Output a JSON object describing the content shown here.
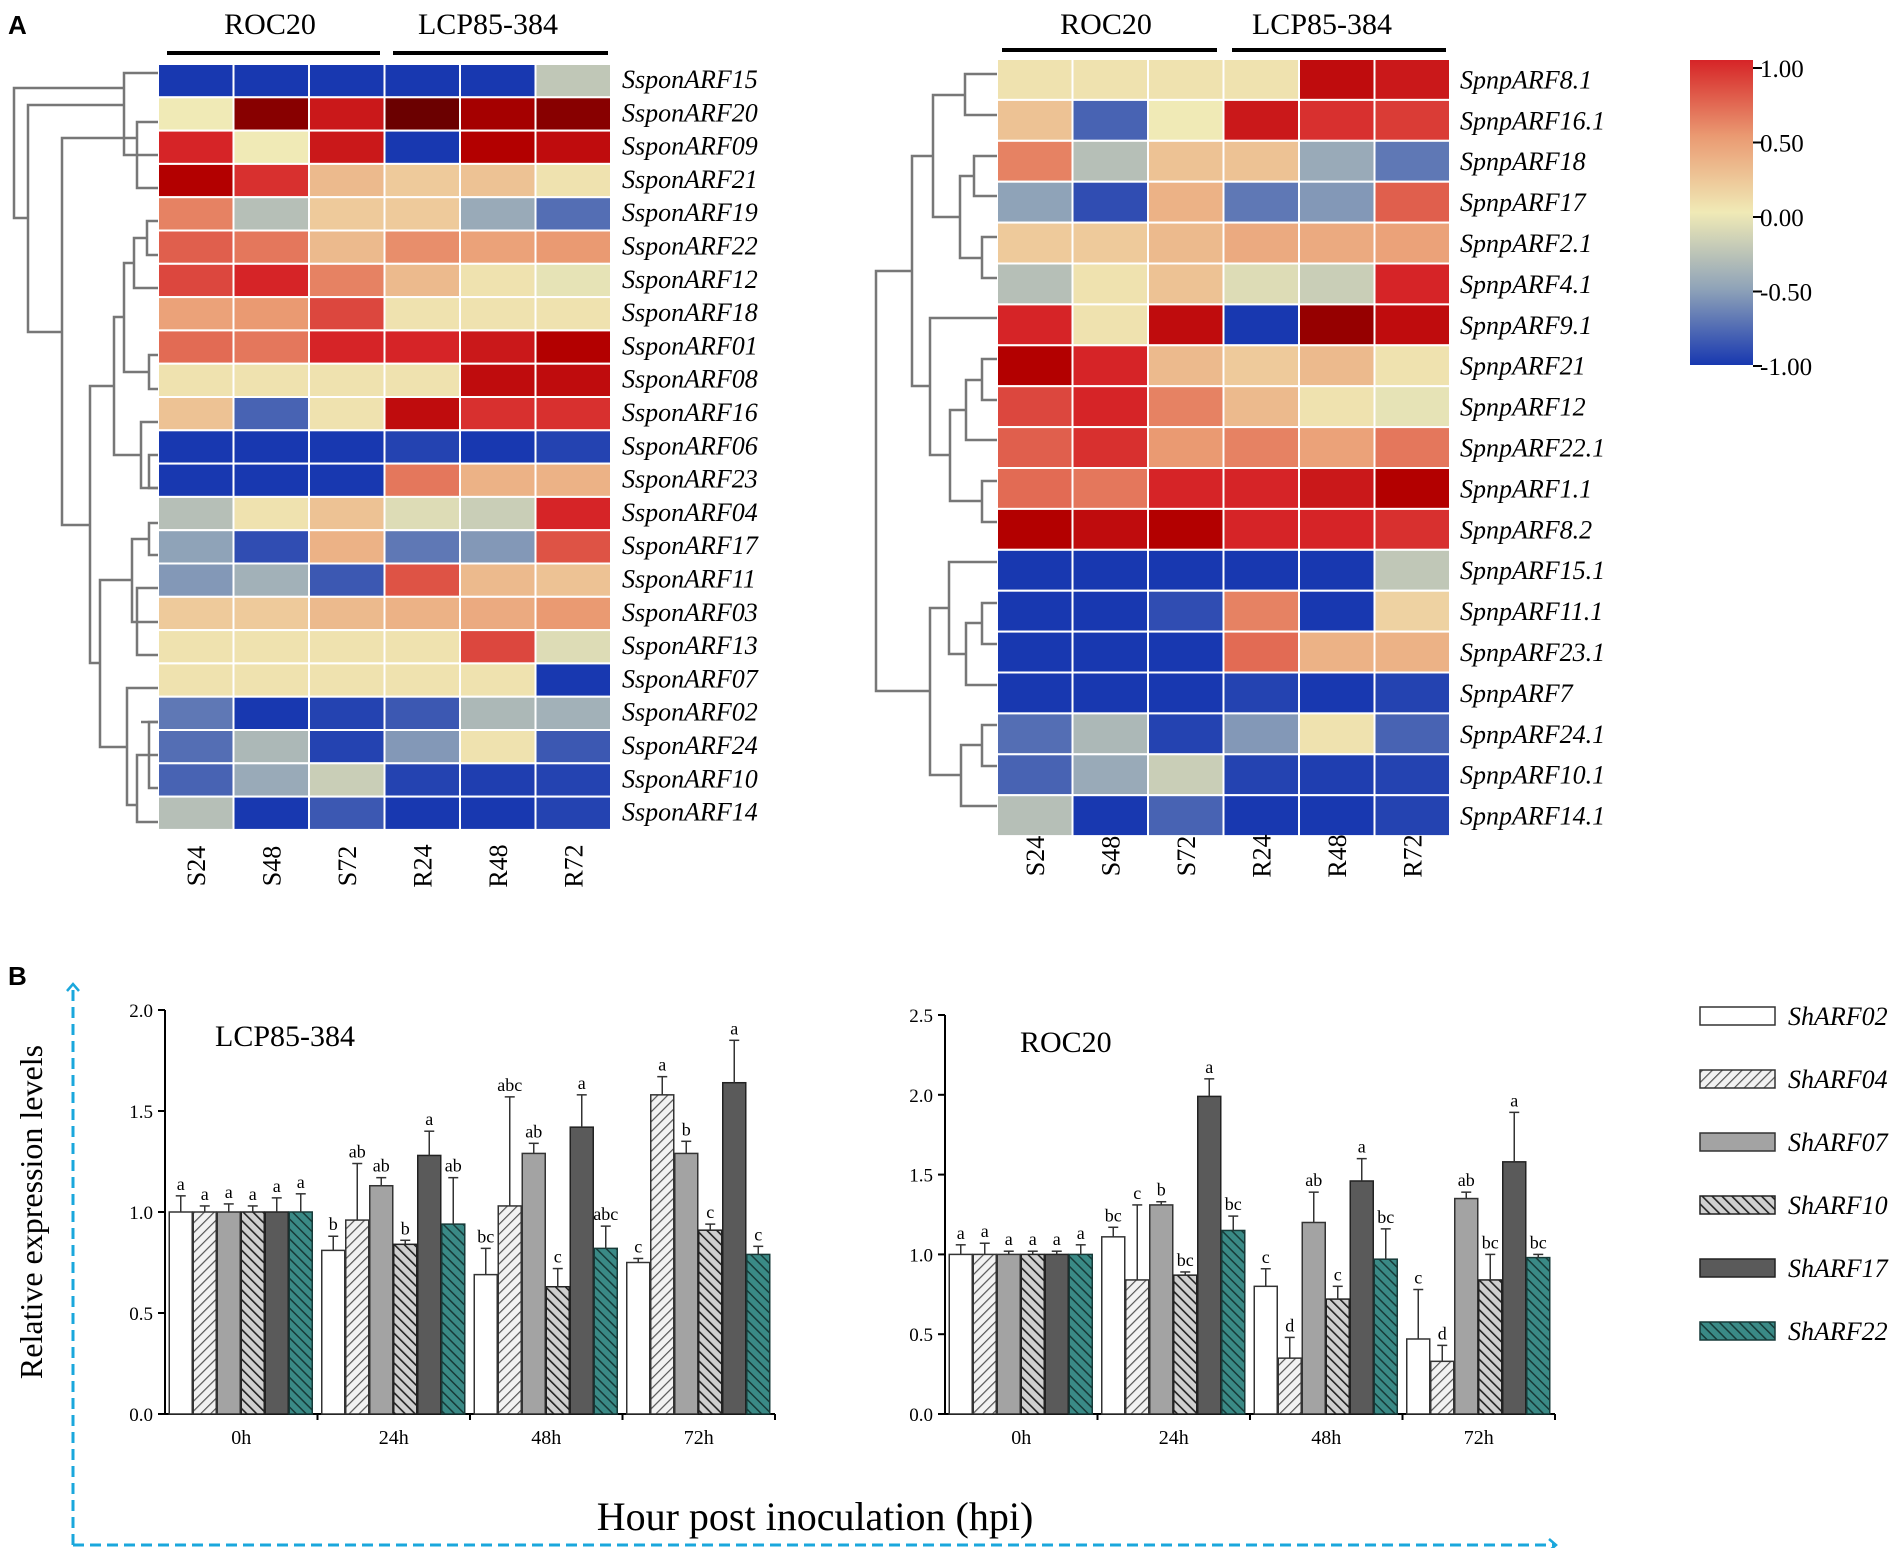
{
  "panels": {
    "a_label": "A",
    "b_label": "B"
  },
  "heatmap_left": {
    "group_labels": [
      "ROC20",
      "LCP85-384"
    ],
    "columns": [
      "S24",
      "S48",
      "S72",
      "R24",
      "R48",
      "R72"
    ],
    "rows": [
      "SsponARF15",
      "SsponARF20",
      "SsponARF09",
      "SsponARF21",
      "SsponARF19",
      "SsponARF22",
      "SsponARF12",
      "SsponARF18",
      "SsponARF01",
      "SsponARF08",
      "SsponARF16",
      "SsponARF06",
      "SsponARF23",
      "SsponARF04",
      "SsponARF17",
      "SsponARF11",
      "SsponARF03",
      "SsponARF13",
      "SsponARF07",
      "SsponARF02",
      "SsponARF24",
      "SsponARF10",
      "SsponARF14"
    ]
  },
  "heatmap_right": {
    "group_labels": [
      "ROC20",
      "LCP85-384"
    ],
    "columns": [
      "S24",
      "S48",
      "S72",
      "R24",
      "R48",
      "R72"
    ],
    "rows": [
      "SpnpARF8.1",
      "SpnpARF16.1",
      "SpnpARF18",
      "SpnpARF17",
      "SpnpARF2.1",
      "SpnpARF4.1",
      "SpnpARF9.1",
      "SpnpARF21",
      "SpnpARF12",
      "SpnpARF22.1",
      "SpnpARF1.1",
      "SpnpARF8.2",
      "SpnpARF15.1",
      "SpnpARF11.1",
      "SpnpARF23.1",
      "SpnpARF7",
      "SpnpARF24.1",
      "SpnpARF10.1",
      "SpnpARF14.1"
    ]
  },
  "colorbar": {
    "ticks": [
      "1.00",
      "0.50",
      "0.00",
      "-0.50",
      "-1.00"
    ],
    "colors": {
      "high": "#d62427",
      "mid": "#f0eab6",
      "low": "#1838b0"
    }
  },
  "barcharts": {
    "ylabel": "Relative expression levels",
    "xlabel": "Hour post inoculation (hpi)",
    "arrow_color": "#1aa7dc",
    "legend": [
      "ShARF02",
      "ShARF04",
      "ShARF07",
      "ShARF10",
      "ShARF17",
      "ShARF22"
    ]
  },
  "chart_data": [
    {
      "type": "heatmap",
      "title": "",
      "rows": [
        "SsponARF15",
        "SsponARF20",
        "SsponARF09",
        "SsponARF21",
        "SsponARF19",
        "SsponARF22",
        "SsponARF12",
        "SsponARF18",
        "SsponARF01",
        "SsponARF08",
        "SsponARF16",
        "SsponARF06",
        "SsponARF23",
        "SsponARF04",
        "SsponARF17",
        "SsponARF11",
        "SsponARF03",
        "SsponARF13",
        "SsponARF07",
        "SsponARF02",
        "SsponARF24",
        "SsponARF10",
        "SsponARF14"
      ],
      "columns": [
        "S24",
        "S48",
        "S72",
        "R24",
        "R48",
        "R72"
      ],
      "values": [
        [
          -1.0,
          -1.0,
          -1.0,
          -1.0,
          -1.0,
          -0.25
        ],
        [
          0.0,
          1.3,
          1.05,
          1.4,
          1.2,
          1.3
        ],
        [
          1.0,
          0.0,
          1.05,
          -1.0,
          1.15,
          1.1
        ],
        [
          1.15,
          0.95,
          0.3,
          0.2,
          0.25,
          0.05
        ],
        [
          0.6,
          -0.3,
          0.2,
          0.2,
          -0.45,
          -0.75
        ],
        [
          0.75,
          0.65,
          0.3,
          0.55,
          0.45,
          0.5
        ],
        [
          0.85,
          1.0,
          0.6,
          0.3,
          0.05,
          -0.05
        ],
        [
          0.45,
          0.5,
          0.85,
          0.05,
          0.05,
          0.05
        ],
        [
          0.7,
          0.65,
          1.0,
          1.0,
          1.05,
          1.15
        ],
        [
          0.05,
          0.05,
          0.05,
          0.05,
          1.1,
          1.1
        ],
        [
          0.25,
          -0.8,
          0.05,
          1.1,
          0.95,
          0.95
        ],
        [
          -1.0,
          -1.0,
          -1.0,
          -0.95,
          -1.0,
          -0.95
        ],
        [
          -1.0,
          -1.0,
          -1.0,
          0.65,
          0.35,
          0.35
        ],
        [
          -0.3,
          0.05,
          0.25,
          -0.1,
          -0.2,
          1.0
        ],
        [
          -0.5,
          -0.9,
          0.35,
          -0.7,
          -0.55,
          0.8
        ],
        [
          -0.55,
          -0.4,
          -0.85,
          0.8,
          0.3,
          0.25
        ],
        [
          0.2,
          0.2,
          0.3,
          0.35,
          0.4,
          0.5
        ],
        [
          0.05,
          0.05,
          0.05,
          0.05,
          0.85,
          -0.1
        ],
        [
          0.05,
          0.05,
          0.05,
          0.05,
          0.05,
          -1.0
        ],
        [
          -0.7,
          -1.0,
          -0.95,
          -0.85,
          -0.35,
          -0.4
        ],
        [
          -0.75,
          -0.35,
          -0.95,
          -0.55,
          0.05,
          -0.85
        ],
        [
          -0.8,
          -0.45,
          -0.2,
          -0.95,
          -0.97,
          -0.95
        ],
        [
          -0.3,
          -1.0,
          -0.85,
          -1.0,
          -1.0,
          -0.95
        ]
      ],
      "color_range": [
        -1.0,
        1.0
      ],
      "color_ticks": [
        1.0,
        0.5,
        0.0,
        -0.5,
        -1.0
      ]
    },
    {
      "type": "heatmap",
      "title": "",
      "rows": [
        "SpnpARF8.1",
        "SpnpARF16.1",
        "SpnpARF18",
        "SpnpARF17",
        "SpnpARF2.1",
        "SpnpARF4.1",
        "SpnpARF9.1",
        "SpnpARF21",
        "SpnpARF12",
        "SpnpARF22.1",
        "SpnpARF1.1",
        "SpnpARF8.2",
        "SpnpARF15.1",
        "SpnpARF11.1",
        "SpnpARF23.1",
        "SpnpARF7",
        "SpnpARF24.1",
        "SpnpARF10.1",
        "SpnpARF14.1"
      ],
      "columns": [
        "S24",
        "S48",
        "S72",
        "R24",
        "R48",
        "R72"
      ],
      "values": [
        [
          0.05,
          0.05,
          0.05,
          0.05,
          1.1,
          1.05
        ],
        [
          0.25,
          -0.8,
          0.0,
          1.05,
          0.95,
          0.9
        ],
        [
          0.6,
          -0.3,
          0.25,
          0.25,
          -0.45,
          -0.7
        ],
        [
          -0.5,
          -0.9,
          0.35,
          -0.7,
          -0.55,
          0.75
        ],
        [
          0.2,
          0.2,
          0.3,
          0.4,
          0.4,
          0.45
        ],
        [
          -0.3,
          0.05,
          0.25,
          -0.1,
          -0.2,
          1.0
        ],
        [
          1.0,
          0.05,
          1.1,
          -1.0,
          1.25,
          1.1
        ],
        [
          1.15,
          1.0,
          0.3,
          0.2,
          0.3,
          0.05
        ],
        [
          0.85,
          1.0,
          0.6,
          0.3,
          0.05,
          -0.05
        ],
        [
          0.75,
          0.95,
          0.5,
          0.6,
          0.45,
          0.65
        ],
        [
          0.7,
          0.65,
          1.0,
          1.0,
          1.05,
          1.15
        ],
        [
          1.15,
          1.1,
          1.15,
          1.0,
          1.0,
          0.95
        ],
        [
          -1.0,
          -1.0,
          -1.0,
          -1.0,
          -1.0,
          -0.25
        ],
        [
          -1.0,
          -1.0,
          -0.9,
          0.6,
          -1.0,
          0.15
        ],
        [
          -1.0,
          -1.0,
          -1.0,
          0.7,
          0.35,
          0.35
        ],
        [
          -1.0,
          -1.0,
          -1.0,
          -0.95,
          -1.0,
          -0.95
        ],
        [
          -0.75,
          -0.35,
          -0.95,
          -0.55,
          0.05,
          -0.8
        ],
        [
          -0.8,
          -0.45,
          -0.2,
          -0.95,
          -0.97,
          -0.95
        ],
        [
          -0.3,
          -1.0,
          -0.8,
          -1.0,
          -1.0,
          -0.95
        ]
      ],
      "color_range": [
        -1.0,
        1.0
      ],
      "color_ticks": [
        1.0,
        0.5,
        0.0,
        -0.5,
        -1.0
      ]
    },
    {
      "type": "bar",
      "title": "LCP85-384",
      "xlabel": "Hour post inoculation (hpi)",
      "ylabel": "Relative expression levels",
      "categories": [
        "0h",
        "24h",
        "48h",
        "72h"
      ],
      "ylim": [
        0.0,
        2.0
      ],
      "yticks": [
        0.0,
        0.5,
        1.0,
        1.5,
        2.0
      ],
      "series": [
        {
          "name": "ShARF02",
          "values": [
            1.0,
            0.81,
            0.69,
            0.75
          ],
          "errors": [
            0.08,
            0.07,
            0.13,
            0.02
          ],
          "letters": [
            "a",
            "b",
            "bc",
            "c"
          ]
        },
        {
          "name": "ShARF04",
          "values": [
            1.0,
            0.96,
            1.03,
            1.58
          ],
          "errors": [
            0.03,
            0.28,
            0.54,
            0.09
          ],
          "letters": [
            "a",
            "ab",
            "abc",
            "a"
          ]
        },
        {
          "name": "ShARF07",
          "values": [
            1.0,
            1.13,
            1.29,
            1.29
          ],
          "errors": [
            0.04,
            0.04,
            0.05,
            0.06
          ],
          "letters": [
            "a",
            "ab",
            "ab",
            "b"
          ]
        },
        {
          "name": "ShARF10",
          "values": [
            1.0,
            0.84,
            0.63,
            0.91
          ],
          "errors": [
            0.03,
            0.02,
            0.09,
            0.03
          ],
          "letters": [
            "a",
            "b",
            "c",
            "c"
          ]
        },
        {
          "name": "ShARF17",
          "values": [
            1.0,
            1.28,
            1.42,
            1.64
          ],
          "errors": [
            0.07,
            0.12,
            0.16,
            0.21
          ],
          "letters": [
            "a",
            "a",
            "a",
            "a"
          ]
        },
        {
          "name": "ShARF22",
          "values": [
            1.0,
            0.94,
            0.82,
            0.79
          ],
          "errors": [
            0.09,
            0.23,
            0.11,
            0.04
          ],
          "letters": [
            "a",
            "ab",
            "abc",
            "c"
          ]
        }
      ]
    },
    {
      "type": "bar",
      "title": "ROC20",
      "xlabel": "Hour post inoculation (hpi)",
      "ylabel": "Relative expression levels",
      "categories": [
        "0h",
        "24h",
        "48h",
        "72h"
      ],
      "ylim": [
        0.0,
        2.5
      ],
      "yticks": [
        0.0,
        0.5,
        1.0,
        1.5,
        2.0,
        2.5
      ],
      "series": [
        {
          "name": "ShARF02",
          "values": [
            1.0,
            1.11,
            0.8,
            0.47
          ],
          "errors": [
            0.06,
            0.06,
            0.11,
            0.31
          ],
          "letters": [
            "a",
            "bc",
            "c",
            "c"
          ]
        },
        {
          "name": "ShARF04",
          "values": [
            1.0,
            0.84,
            0.35,
            0.33
          ],
          "errors": [
            0.07,
            0.47,
            0.13,
            0.1
          ],
          "letters": [
            "a",
            "c",
            "d",
            "d"
          ]
        },
        {
          "name": "ShARF07",
          "values": [
            1.0,
            1.31,
            1.2,
            1.35
          ],
          "errors": [
            0.02,
            0.02,
            0.19,
            0.04
          ],
          "letters": [
            "a",
            "b",
            "ab",
            "ab"
          ]
        },
        {
          "name": "ShARF10",
          "values": [
            1.0,
            0.87,
            0.72,
            0.84
          ],
          "errors": [
            0.02,
            0.02,
            0.08,
            0.16
          ],
          "letters": [
            "a",
            "bc",
            "c",
            "bc"
          ]
        },
        {
          "name": "ShARF17",
          "values": [
            1.0,
            1.99,
            1.46,
            1.58
          ],
          "errors": [
            0.02,
            0.11,
            0.14,
            0.31
          ],
          "letters": [
            "a",
            "a",
            "a",
            "a"
          ]
        },
        {
          "name": "ShARF22",
          "values": [
            1.0,
            1.15,
            0.97,
            0.98
          ],
          "errors": [
            0.06,
            0.09,
            0.19,
            0.02
          ],
          "letters": [
            "a",
            "bc",
            "bc",
            "bc"
          ]
        }
      ]
    }
  ]
}
